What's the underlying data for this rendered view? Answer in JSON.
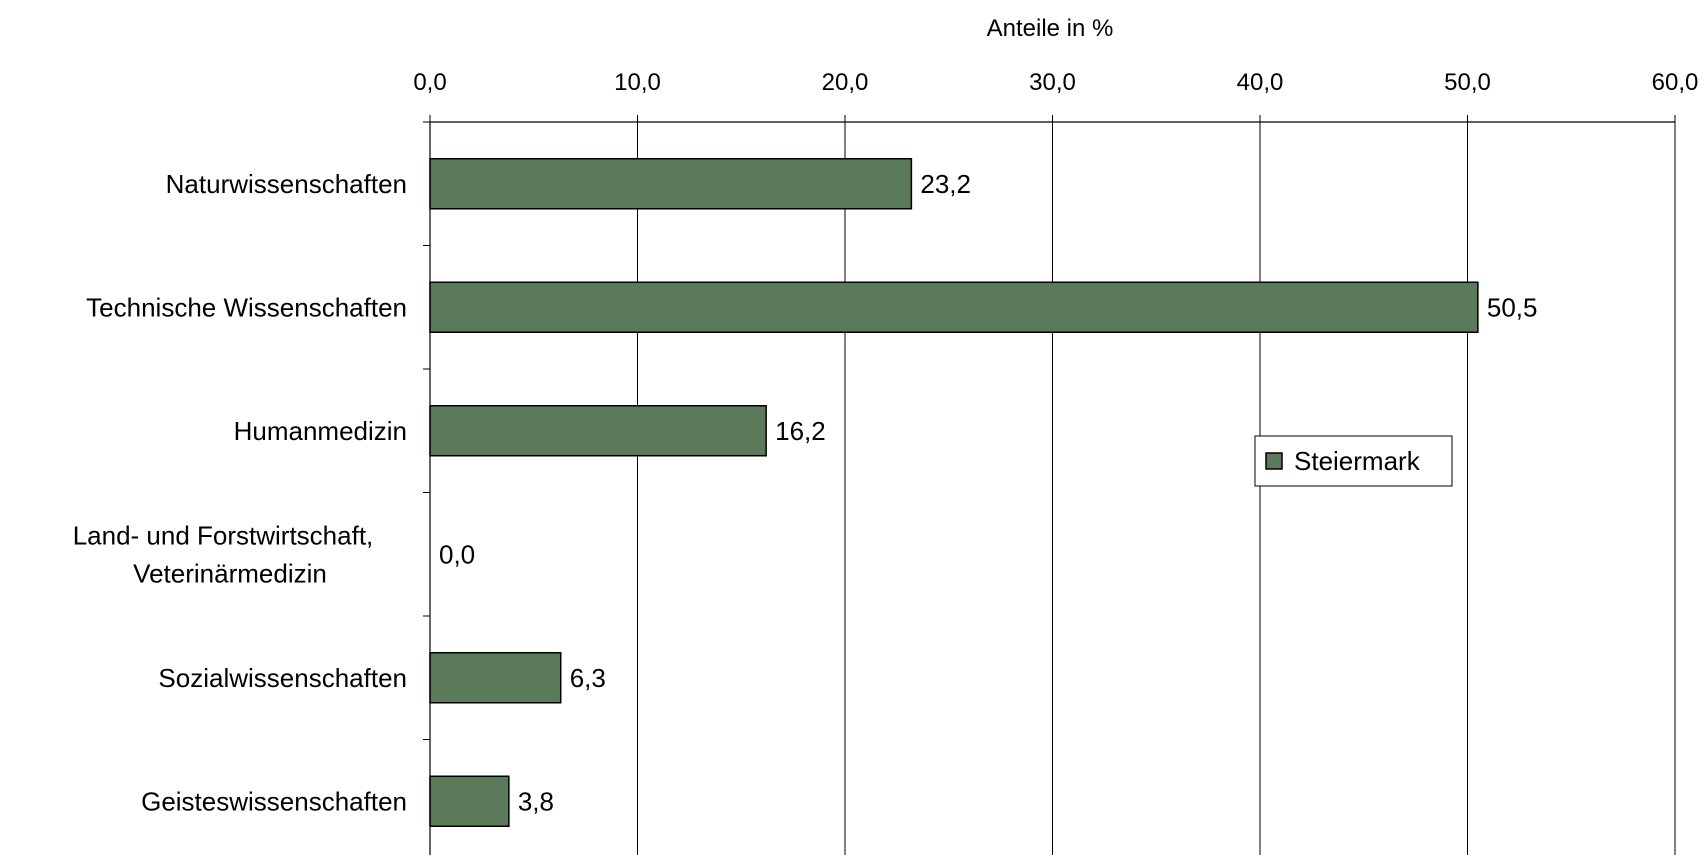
{
  "chart_data": {
    "type": "bar",
    "orientation": "horizontal",
    "xlabel": "Anteile in %",
    "xlim": [
      0,
      60
    ],
    "x_ticks": [
      0,
      10,
      20,
      30,
      40,
      50,
      60
    ],
    "x_tick_labels": [
      "0,0",
      "10,0",
      "20,0",
      "30,0",
      "40,0",
      "50,0",
      "60,0"
    ],
    "x_axis_position": "top",
    "grid": "vertical",
    "categories": [
      [
        "Naturwissenschaften"
      ],
      [
        "Technische Wissenschaften"
      ],
      [
        "Humanmedizin"
      ],
      [
        "Land- und Forstwirtschaft,",
        "Veterinärmedizin"
      ],
      [
        "Sozialwissenschaften"
      ],
      [
        "Geisteswissenschaften"
      ]
    ],
    "series": [
      {
        "name": "Steiermark",
        "values": [
          23.2,
          50.5,
          16.2,
          0.0,
          6.3,
          3.8
        ],
        "data_labels": [
          "23,2",
          "50,5",
          "16,2",
          "0,0",
          "6,3",
          "3,8"
        ],
        "color": "#5a7a5a"
      }
    ],
    "legend": {
      "position": "right",
      "entries": [
        "Steiermark"
      ]
    }
  }
}
